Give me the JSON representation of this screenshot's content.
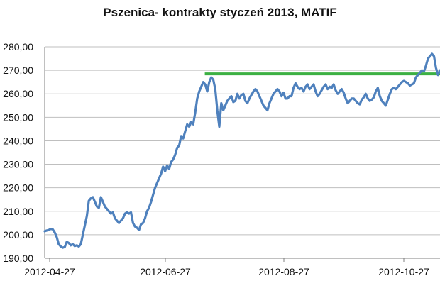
{
  "chart_data": {
    "type": "line",
    "title": "Pszenica- kontrakty styczeń 2013, MATIF",
    "xlabel": "",
    "ylabel": "",
    "x_tick_labels": [
      "2012-04-27",
      "2012-06-27",
      "2012-08-27",
      "2012-10-27"
    ],
    "y_tick_labels": [
      "190,00",
      "200,00",
      "210,00",
      "220,00",
      "230,00",
      "240,00",
      "250,00",
      "260,00",
      "270,00",
      "280,00"
    ],
    "ylim": [
      190,
      280
    ],
    "grid": true,
    "legend": "none",
    "colors": {
      "series": "#4f81bd",
      "reference": "#3cb043",
      "grid": "#bfbfbf",
      "axis": "#808080"
    },
    "series": [
      {
        "values": [
          201.5,
          201.8,
          202,
          202.5,
          202.3,
          201,
          199,
          196,
          195,
          194.5,
          194.8,
          197,
          196.5,
          195.5,
          196,
          195.2,
          195.5,
          195,
          196,
          200,
          204,
          208,
          214.5,
          215.5,
          216,
          214,
          212,
          211.5,
          216,
          214,
          212,
          211,
          210,
          209,
          209.5,
          207,
          206,
          205,
          206,
          207,
          209,
          209.5,
          209,
          209.5,
          205,
          203.5,
          203,
          202,
          204.5,
          205,
          207,
          210,
          211.5,
          214,
          217,
          220,
          222,
          224,
          226,
          229,
          227,
          229.5,
          228,
          231,
          232,
          234,
          237,
          238,
          242,
          241,
          244,
          247,
          246,
          248,
          247,
          252,
          258,
          261,
          263,
          265,
          264,
          261,
          265,
          267,
          266,
          262,
          253,
          246,
          256,
          253,
          255,
          257,
          258,
          259,
          256.5,
          257,
          260,
          258,
          259.5,
          260,
          257,
          256,
          258,
          259.5,
          261,
          262,
          261,
          259,
          257,
          255,
          254,
          253,
          256,
          258,
          260,
          261,
          262,
          261,
          259,
          260.5,
          258,
          258,
          259,
          259,
          262.5,
          264.5,
          263,
          262,
          262.5,
          261,
          263,
          264,
          262,
          263,
          264,
          261,
          259,
          260,
          261.5,
          263,
          264,
          262,
          263,
          262.5,
          264,
          261.5,
          260,
          261,
          262,
          260.5,
          258,
          256,
          257,
          258,
          258,
          257,
          256,
          255.5,
          257.5,
          258.5,
          260,
          258,
          257,
          257.5,
          258.5,
          261,
          262.5,
          259,
          257,
          256,
          255,
          257.5,
          260,
          262,
          262.5,
          262,
          263,
          264,
          265,
          265.5,
          265,
          264.5,
          263.5,
          264,
          264.5,
          267,
          268,
          269,
          270,
          269.5,
          272,
          275,
          276,
          277,
          276,
          271,
          268,
          270
        ]
      }
    ],
    "reference_lines": [
      {
        "y": 268.5,
        "x_start_fraction": 0.405,
        "x_end_fraction": 1.0
      }
    ]
  }
}
